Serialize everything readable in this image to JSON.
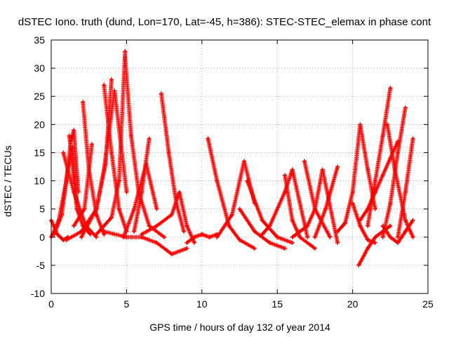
{
  "chart_data": {
    "type": "scatter",
    "title": "dSTEC Iono. truth (dund, Lon=170, Lat=-45, h=386): STEC-STEC_elemax in phase cont",
    "xlabel": "GPS time / hours of day 132 of year 2014",
    "ylabel": "dSTEC  / TECUs",
    "xlim": [
      0,
      25
    ],
    "ylim": [
      -10,
      35
    ],
    "xticks": [
      "0",
      "5",
      "10",
      "15",
      "20",
      "25"
    ],
    "yticks": [
      "-10",
      "-5",
      "0",
      "5",
      "10",
      "15",
      "20",
      "25",
      "30",
      "35"
    ],
    "grid": true,
    "legend": "none",
    "marker": "+",
    "color": "#ff0000",
    "series": [
      {
        "x": [
          0.0,
          0.4,
          0.8,
          1.1
        ],
        "y": [
          3.0,
          0.5,
          -0.5,
          0.0
        ]
      },
      {
        "x": [
          0.0,
          0.5,
          1.0,
          1.3,
          1.5,
          1.8
        ],
        "y": [
          0.0,
          3.0,
          10.0,
          17.0,
          19.0,
          8.0
        ]
      },
      {
        "x": [
          0.2,
          0.7,
          1.1,
          1.4,
          1.7
        ],
        "y": [
          0.5,
          4.0,
          12.0,
          16.0,
          6.0
        ]
      },
      {
        "x": [
          0.8,
          1.5,
          2.3,
          3.0
        ],
        "y": [
          15.0,
          8.0,
          2.0,
          0.0
        ]
      },
      {
        "x": [
          1.2,
          1.7,
          2.1,
          2.6
        ],
        "y": [
          18.0,
          5.0,
          2.0,
          0.5
        ]
      },
      {
        "x": [
          1.0,
          2.0,
          3.0,
          3.6,
          4.0
        ],
        "y": [
          -0.5,
          1.0,
          5.0,
          13.0,
          28.0
        ]
      },
      {
        "x": [
          2.1,
          2.5,
          3.0,
          3.5
        ],
        "y": [
          24.0,
          12.0,
          4.0,
          0.5
        ]
      },
      {
        "x": [
          1.5,
          2.2,
          2.7
        ],
        "y": [
          2.0,
          5.0,
          16.5
        ]
      },
      {
        "x": [
          2.0,
          3.0,
          3.5,
          4.2,
          5.0
        ],
        "y": [
          0.0,
          5.0,
          12.0,
          26.0,
          8.0
        ]
      },
      {
        "x": [
          3.5,
          4.0,
          4.5,
          5.0
        ],
        "y": [
          27.0,
          15.0,
          5.0,
          1.0
        ]
      },
      {
        "x": [
          3.0,
          4.0,
          4.5,
          4.9
        ],
        "y": [
          0.5,
          3.5,
          10.0,
          33.0
        ]
      },
      {
        "x": [
          4.9,
          5.3,
          5.8,
          6.5,
          7.5
        ],
        "y": [
          32.0,
          18.0,
          8.0,
          2.0,
          0.0
        ]
      },
      {
        "x": [
          3.5,
          5.0,
          6.0,
          7.0,
          8.0,
          9.0
        ],
        "y": [
          1.0,
          0.0,
          0.0,
          -1.0,
          -3.0,
          -2.0
        ]
      },
      {
        "x": [
          4.8,
          5.5,
          6.3,
          7.0
        ],
        "y": [
          0.0,
          5.0,
          13.0,
          5.0
        ]
      },
      {
        "x": [
          5.5,
          6.0,
          6.5
        ],
        "y": [
          1.0,
          8.0,
          17.5
        ]
      },
      {
        "x": [
          6.0,
          7.0,
          8.0,
          8.5,
          9.0,
          9.5
        ],
        "y": [
          0.5,
          2.0,
          4.0,
          8.0,
          2.0,
          -1.0
        ]
      },
      {
        "x": [
          7.3,
          7.8,
          8.3,
          8.8
        ],
        "y": [
          25.5,
          15.0,
          6.0,
          1.0
        ]
      },
      {
        "x": [
          9.0,
          9.5,
          10.0,
          10.5,
          11.0
        ],
        "y": [
          -1.0,
          0.0,
          0.5,
          0.0,
          0.5
        ]
      },
      {
        "x": [
          10.4,
          11.0,
          11.8,
          12.5,
          13.5
        ],
        "y": [
          17.5,
          10.0,
          2.0,
          -0.5,
          -2.0
        ]
      },
      {
        "x": [
          11.0,
          12.0,
          12.8,
          13.5
        ],
        "y": [
          0.0,
          4.0,
          13.5,
          6.0
        ]
      },
      {
        "x": [
          12.5,
          13.5,
          14.5,
          15.5
        ],
        "y": [
          5.0,
          1.0,
          -1.0,
          -2.0
        ]
      },
      {
        "x": [
          13.0,
          14.0,
          15.0,
          16.0
        ],
        "y": [
          10.0,
          3.0,
          0.0,
          -1.0
        ]
      },
      {
        "x": [
          14.0,
          14.5,
          15.5,
          16.0,
          17.0
        ],
        "y": [
          0.5,
          2.0,
          8.0,
          12.0,
          0.0
        ]
      },
      {
        "x": [
          15.5,
          16.0,
          16.5,
          17.5
        ],
        "y": [
          11.0,
          3.0,
          0.0,
          -2.0
        ]
      },
      {
        "x": [
          16.0,
          16.5,
          17.0,
          17.5,
          18.0,
          19.0
        ],
        "y": [
          0.0,
          1.0,
          2.0,
          5.0,
          12.0,
          -1.0
        ]
      },
      {
        "x": [
          16.8,
          17.5,
          18.5
        ],
        "y": [
          13.5,
          5.0,
          0.0
        ]
      },
      {
        "x": [
          17.5,
          18.2,
          19.0
        ],
        "y": [
          0.0,
          5.0,
          12.5
        ]
      },
      {
        "x": [
          19.0,
          19.5,
          20.0,
          20.5,
          21.0,
          21.5
        ],
        "y": [
          1.0,
          2.5,
          8.0,
          20.0,
          12.0,
          5.0
        ]
      },
      {
        "x": [
          20.0,
          20.5,
          21.0,
          21.5
        ],
        "y": [
          6.0,
          2.0,
          -0.5,
          -1.0
        ]
      },
      {
        "x": [
          20.4,
          21.0,
          21.5,
          22.0,
          22.5
        ],
        "y": [
          -5.0,
          -2.0,
          0.0,
          1.0,
          2.0
        ]
      },
      {
        "x": [
          21.0,
          21.5,
          22.0,
          22.5
        ],
        "y": [
          2.0,
          10.0,
          18.0,
          26.5
        ]
      },
      {
        "x": [
          20.5,
          21.0,
          21.5,
          22.0,
          22.5,
          23.0
        ],
        "y": [
          3.0,
          5.0,
          8.0,
          11.0,
          14.0,
          17.0
        ]
      },
      {
        "x": [
          22.3,
          22.8,
          23.5,
          24.0
        ],
        "y": [
          20.0,
          12.0,
          3.0,
          0.0
        ]
      },
      {
        "x": [
          22.0,
          22.5,
          23.0,
          23.5
        ],
        "y": [
          0.0,
          6.0,
          15.0,
          23.0
        ]
      },
      {
        "x": [
          23.0,
          23.5,
          24.0
        ],
        "y": [
          0.0,
          8.0,
          17.5
        ]
      },
      {
        "x": [
          22.0,
          22.5,
          23.0,
          23.5,
          24.0
        ],
        "y": [
          2.0,
          0.0,
          -1.0,
          1.0,
          3.0
        ]
      }
    ]
  }
}
